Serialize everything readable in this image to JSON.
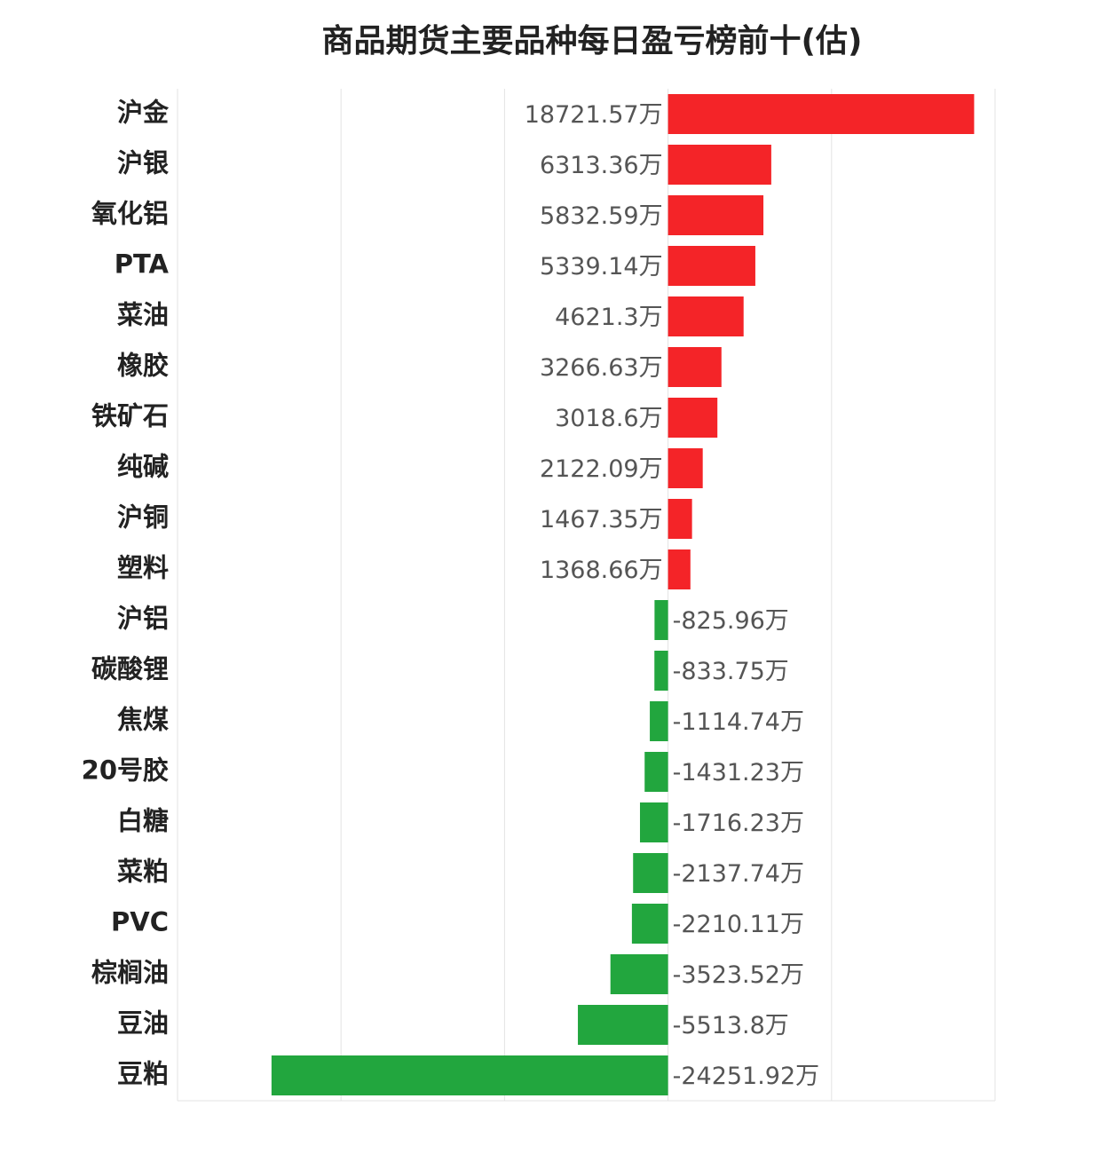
{
  "chart_data": {
    "type": "bar",
    "orientation": "horizontal",
    "title": "商品期货主要品种每日盈亏榜前十(估)",
    "categories": [
      "沪金",
      "沪银",
      "氧化铝",
      "PTA",
      "菜油",
      "橡胶",
      "铁矿石",
      "纯碱",
      "沪铜",
      "塑料",
      "沪铝",
      "碳酸锂",
      "焦煤",
      "20号胶",
      "白糖",
      "菜粕",
      "PVC",
      "棕榈油",
      "豆油",
      "豆粕"
    ],
    "values": [
      18721.57,
      6313.36,
      5832.59,
      5339.14,
      4621.3,
      3266.63,
      3018.6,
      2122.09,
      1467.35,
      1368.66,
      -825.96,
      -833.75,
      -1114.74,
      -1431.23,
      -1716.23,
      -2137.74,
      -2210.11,
      -3523.52,
      -5513.8,
      -24251.92
    ],
    "value_labels": [
      "18721.57万",
      "6313.36万",
      "5832.59万",
      "5339.14万",
      "4621.3万",
      "3266.63万",
      "3018.6万",
      "2122.09万",
      "1467.35万",
      "1368.66万",
      "-825.96万",
      "-833.75万",
      "-1114.74万",
      "-1431.23万",
      "-1716.23万",
      "-2137.74万",
      "-2210.11万",
      "-3523.52万",
      "-5513.8万",
      "-24251.92万"
    ],
    "positive_color": "#f42428",
    "negative_color": "#22a63e",
    "xlim": [
      -30000,
      20000
    ],
    "xticks": [
      -30000,
      -20000,
      -10000,
      0,
      10000,
      20000
    ],
    "grid": true
  }
}
